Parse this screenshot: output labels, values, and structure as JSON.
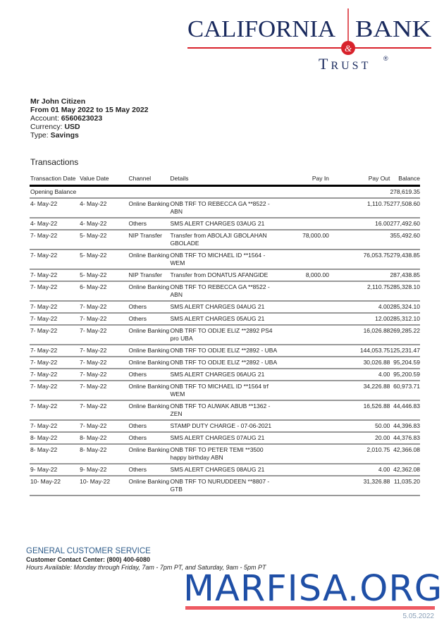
{
  "logo": {
    "line1a": "California",
    "line1b": "Bank",
    "ampersand": "&",
    "line2": "Trust",
    "reg": "®",
    "colors": {
      "navy": "#1a2a5e",
      "red": "#d8222b"
    }
  },
  "customer": {
    "name": "Mr John Citizen",
    "period": "From 01 May 2022 to 15 May 2022",
    "account_label": "Account:",
    "account": "6560623023",
    "currency_label": "Currency:",
    "currency": "USD",
    "type_label": "Type:",
    "type": "Savings"
  },
  "transactions": {
    "title": "Transactions",
    "headers": [
      "Transaction Date",
      "Value Date",
      "Channel",
      "Details",
      "Pay In",
      "Pay Out",
      "Balance"
    ],
    "opening": {
      "label": "Opening Balance",
      "balance": "278,619.35"
    },
    "rows": [
      [
        "4- May-22",
        "4- May-22",
        "Online Banking",
        "ONB TRF TO REBECCA GA **8522 - ABN",
        "",
        "1,110.75",
        "277,508.60"
      ],
      [
        "4- May-22",
        "4- May-22",
        "Others",
        "SMS ALERT CHARGES 03AUG 21",
        "",
        "16.00",
        "277,492.60"
      ],
      [
        "7- May-22",
        "5- May-22",
        "NIP Transfer",
        "Transfer from ABOLAJI GBOLAHAN GBOLADE",
        "78,000.00",
        "",
        "355,492.60"
      ],
      [
        "7- May-22",
        "5- May-22",
        "Online Banking",
        "ONB TRF TO MICHAEL ID **1564 - WEM",
        "",
        "76,053.75",
        "279,438.85"
      ],
      [
        "7- May-22",
        "5- May-22",
        "NIP Transfer",
        "Transfer from DONATUS AFANGIDE",
        "8,000.00",
        "",
        "287,438.85"
      ],
      [
        "7- May-22",
        "6- May-22",
        "Online Banking",
        "ONB TRF TO REBECCA GA **8522 - ABN",
        "",
        "2,110.75",
        "285,328.10"
      ],
      [
        "7- May-22",
        "7- May-22",
        "Others",
        "SMS ALERT CHARGES 04AUG 21",
        "",
        "4.00",
        "285,324.10"
      ],
      [
        "7- May-22",
        "7- May-22",
        "Others",
        "SMS ALERT CHARGES 05AUG 21",
        "",
        "12.00",
        "285,312.10"
      ],
      [
        "7- May-22",
        "7- May-22",
        "Online Banking",
        "ONB TRF TO ODIJE ELIZ **2892 PS4 pro UBA",
        "",
        "16,026.88",
        "269,285.22"
      ],
      [
        "7- May-22",
        "7- May-22",
        "Online Banking",
        "ONB TRF TO ODIJE ELIZ **2892 - UBA",
        "",
        "144,053.75",
        "125,231.47"
      ],
      [
        "7- May-22",
        "7- May-22",
        "Online Banking",
        "ONB TRF TO ODIJE ELIZ **2892 - UBA",
        "",
        "30,026.88",
        "95,204.59"
      ],
      [
        "7- May-22",
        "7- May-22",
        "Others",
        "SMS ALERT CHARGES 06AUG 21",
        "",
        "4.00",
        "95,200.59"
      ],
      [
        "7- May-22",
        "7- May-22",
        "Online Banking",
        "ONB TRF TO MICHAEL ID **1564 trf WEM",
        "",
        "34,226.88",
        "60,973.71"
      ],
      [
        "7- May-22",
        "7- May-22",
        "Online Banking",
        "ONB TRF TO AUWAK ABUB **1362 - ZEN",
        "",
        "16,526.88",
        "44,446.83"
      ],
      [
        "7- May-22",
        "7- May-22",
        "Others",
        "STAMP DUTY CHARGE - 07-06-2021",
        "",
        "50.00",
        "44,396.83"
      ],
      [
        "8- May-22",
        "8- May-22",
        "Others",
        "SMS ALERT CHARGES 07AUG 21",
        "",
        "20.00",
        "44,376.83"
      ],
      [
        "8- May-22",
        "8- May-22",
        "Online Banking",
        "ONB TRF TO PETER TEMI **3500 happy birthday ABN",
        "",
        "2,010.75",
        "42,366.08"
      ],
      [
        "9- May-22",
        "9- May-22",
        "Others",
        "SMS ALERT CHARGES 08AUG 21",
        "",
        "4.00",
        "42,362.08"
      ],
      [
        "10- May-22",
        "10- May-22",
        "Online Banking",
        "ONB TRF TO NURUDDEEN **8807 - GTB",
        "",
        "31,326.88",
        "11,035.20"
      ]
    ]
  },
  "service": {
    "heading": "GENERAL CUSTOMER SERVICE",
    "phone": "Customer Contact Center: (800) 400-6080",
    "hours": "Hours Available:  Monday through Friday, 7am - 7pm PT, and Saturday, 9am - 5pm PT"
  },
  "stamp": "5.05.2022",
  "watermark": {
    "text": "MARFISA.ORG",
    "color": "#1f4fa6",
    "underline_color": "#ee5a62"
  }
}
